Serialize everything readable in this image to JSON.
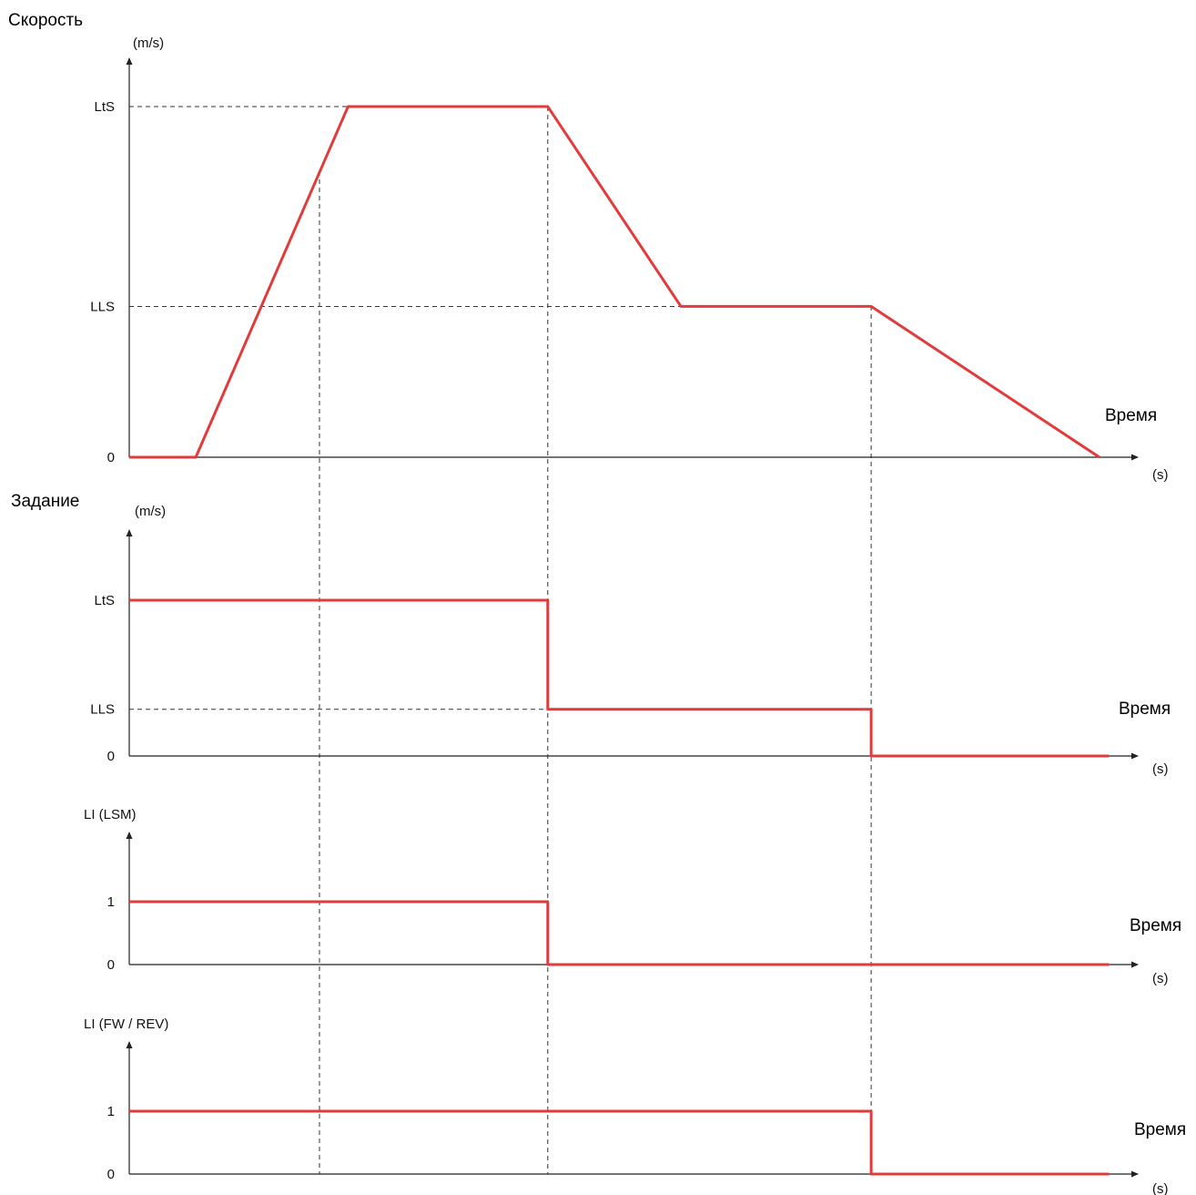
{
  "chart_data": [
    {
      "type": "line",
      "title": "Скорость",
      "ylabel": "(m/s)",
      "xlabel": "(s)",
      "time_label": "Время",
      "y_ticks": [
        {
          "label": "LtS",
          "value": 2
        },
        {
          "label": "LLS",
          "value": 0.86
        },
        {
          "label": "0",
          "value": 0
        }
      ],
      "ylim": [
        0,
        2
      ],
      "series": [
        {
          "values": [
            [
              0,
              0
            ],
            [
              0.7,
              0
            ],
            [
              2.3,
              2
            ],
            [
              4.4,
              2
            ],
            [
              5.8,
              0.86
            ],
            [
              7.8,
              0.86
            ],
            [
              10.2,
              0
            ]
          ]
        }
      ]
    },
    {
      "type": "line",
      "title": "Задание",
      "ylabel": "(m/s)",
      "xlabel": "(s)",
      "time_label": "Время",
      "y_ticks": [
        {
          "label": "LtS",
          "value": 2
        },
        {
          "label": "LLS",
          "value": 0.6
        },
        {
          "label": "0",
          "value": 0
        }
      ],
      "ylim": [
        0,
        2
      ],
      "series": [
        {
          "values": [
            [
              0,
              2
            ],
            [
              4.4,
              2
            ],
            [
              4.4,
              0.6
            ],
            [
              7.8,
              0.6
            ],
            [
              7.8,
              0
            ],
            [
              10.3,
              0
            ]
          ]
        }
      ]
    },
    {
      "type": "line",
      "title": "LI (LSM)",
      "xlabel": "(s)",
      "time_label": "Время",
      "y_ticks": [
        {
          "label": "1",
          "value": 1
        },
        {
          "label": "0",
          "value": 0
        }
      ],
      "ylim": [
        0,
        1
      ],
      "series": [
        {
          "values": [
            [
              0,
              1
            ],
            [
              4.4,
              1
            ],
            [
              4.4,
              0
            ],
            [
              10.3,
              0
            ]
          ]
        }
      ]
    },
    {
      "type": "line",
      "title": "LI (FW / REV)",
      "xlabel": "(s)",
      "time_label": "Время",
      "y_ticks": [
        {
          "label": "1",
          "value": 1
        },
        {
          "label": "0",
          "value": 0
        }
      ],
      "ylim": [
        0,
        1
      ],
      "series": [
        {
          "values": [
            [
              0,
              1
            ],
            [
              7.8,
              1
            ],
            [
              7.8,
              0
            ],
            [
              10.3,
              0
            ]
          ]
        }
      ]
    }
  ],
  "guide_times": [
    2.0,
    4.4,
    7.8
  ],
  "colors": {
    "signal": "#e23b3b",
    "axis": "#222222",
    "guide": "#333333"
  }
}
